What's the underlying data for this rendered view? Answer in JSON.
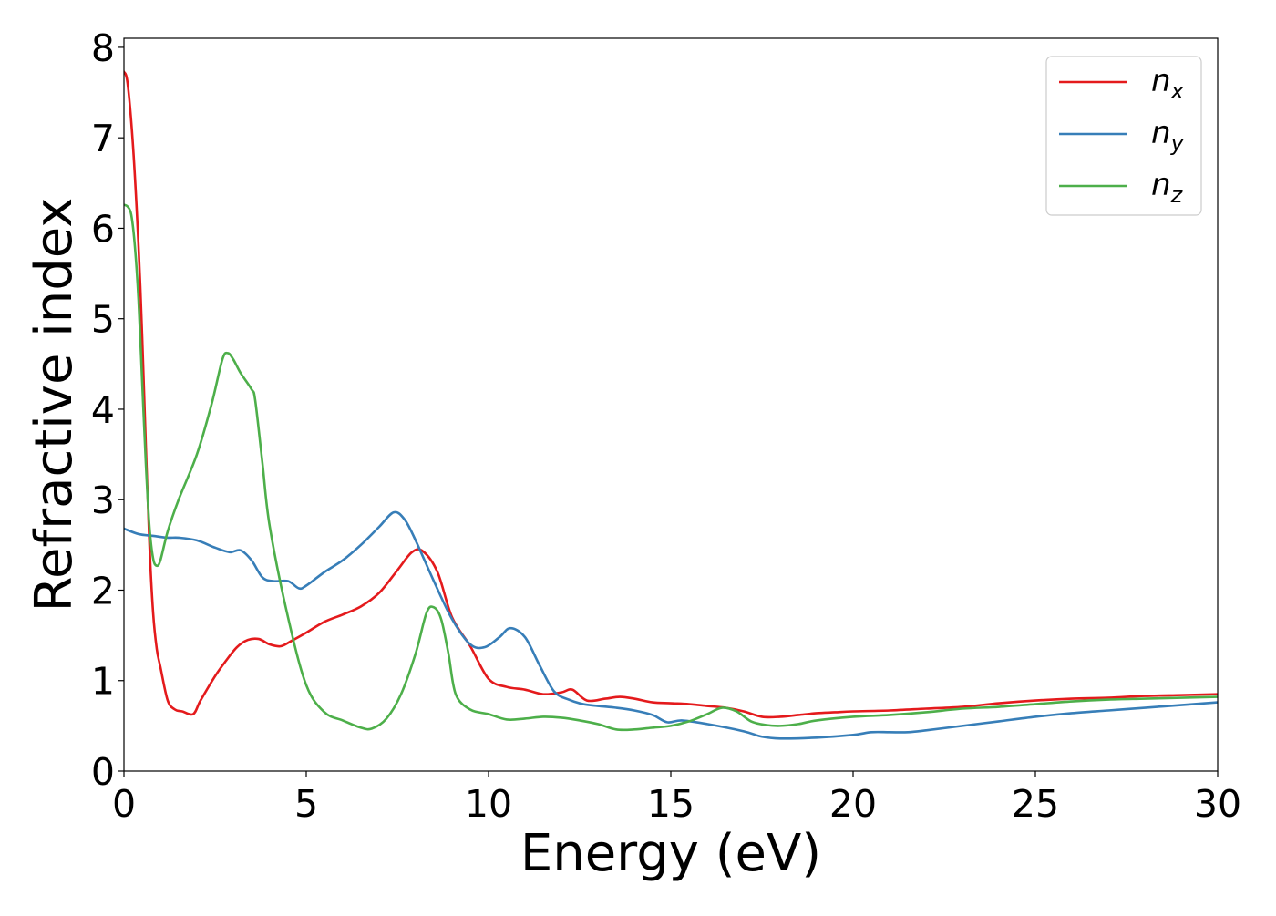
{
  "chart_data": {
    "type": "line",
    "title": "",
    "xlabel": "Energy (eV)",
    "ylabel": "Refractive index",
    "xlim": [
      0,
      30
    ],
    "ylim": [
      0,
      8.1
    ],
    "xticks": [
      "0",
      "5",
      "10",
      "15",
      "20",
      "25",
      "30"
    ],
    "yticks": [
      "0",
      "1",
      "2",
      "3",
      "4",
      "5",
      "6",
      "7",
      "8"
    ],
    "grid": false,
    "legend_position": "top-right",
    "series": [
      {
        "name": "n",
        "subscript": "x",
        "color": "#e41a1c",
        "x": [
          0,
          0.1,
          0.25,
          0.4,
          0.5,
          0.6,
          0.7,
          0.8,
          0.9,
          1.0,
          1.2,
          1.4,
          1.6,
          1.9,
          2.1,
          2.5,
          2.8,
          3.1,
          3.4,
          3.7,
          4.0,
          4.3,
          4.6,
          5.0,
          5.5,
          6.0,
          6.5,
          7.0,
          7.5,
          7.9,
          8.2,
          8.6,
          9.0,
          9.5,
          10.0,
          10.5,
          11.0,
          11.5,
          12.0,
          12.3,
          12.7,
          13.2,
          13.6,
          14.0,
          14.5,
          15.0,
          15.5,
          16.0,
          16.5,
          17.0,
          17.5,
          18.0,
          18.5,
          19.0,
          19.5,
          20.0,
          21.0,
          22.0,
          23.0,
          24.0,
          25.0,
          26.0,
          27.0,
          28.0,
          29.0,
          30.0
        ],
        "y": [
          7.73,
          7.6,
          6.9,
          5.8,
          4.8,
          3.6,
          2.5,
          1.75,
          1.35,
          1.15,
          0.78,
          0.68,
          0.66,
          0.63,
          0.78,
          1.05,
          1.22,
          1.37,
          1.45,
          1.46,
          1.4,
          1.38,
          1.44,
          1.53,
          1.65,
          1.73,
          1.82,
          1.97,
          2.22,
          2.42,
          2.43,
          2.2,
          1.7,
          1.38,
          1.02,
          0.93,
          0.9,
          0.85,
          0.87,
          0.9,
          0.78,
          0.8,
          0.82,
          0.8,
          0.76,
          0.75,
          0.74,
          0.72,
          0.7,
          0.66,
          0.6,
          0.6,
          0.62,
          0.64,
          0.65,
          0.66,
          0.67,
          0.69,
          0.71,
          0.75,
          0.78,
          0.8,
          0.81,
          0.83,
          0.84,
          0.85
        ]
      },
      {
        "name": "n",
        "subscript": "y",
        "color": "#377eb8",
        "x": [
          0,
          0.4,
          0.8,
          1.2,
          1.5,
          2.0,
          2.5,
          2.9,
          3.2,
          3.5,
          3.8,
          4.1,
          4.5,
          4.8,
          5.0,
          5.5,
          6.0,
          6.5,
          7.0,
          7.4,
          7.7,
          8.0,
          8.5,
          9.0,
          9.5,
          9.9,
          10.3,
          10.6,
          11.0,
          11.4,
          11.8,
          12.2,
          12.6,
          13.0,
          13.5,
          14.0,
          14.5,
          14.9,
          15.3,
          16.0,
          17.0,
          17.5,
          18.0,
          19.0,
          20.0,
          20.5,
          21.0,
          21.5,
          22.0,
          23.0,
          24.0,
          25.0,
          26.0,
          27.0,
          28.0,
          29.0,
          30.0
        ],
        "y": [
          2.68,
          2.62,
          2.6,
          2.58,
          2.58,
          2.55,
          2.47,
          2.42,
          2.44,
          2.33,
          2.14,
          2.1,
          2.1,
          2.02,
          2.05,
          2.2,
          2.33,
          2.5,
          2.7,
          2.86,
          2.78,
          2.55,
          2.1,
          1.68,
          1.4,
          1.37,
          1.48,
          1.58,
          1.48,
          1.17,
          0.88,
          0.79,
          0.74,
          0.72,
          0.7,
          0.67,
          0.62,
          0.54,
          0.56,
          0.52,
          0.44,
          0.38,
          0.36,
          0.37,
          0.4,
          0.43,
          0.43,
          0.43,
          0.45,
          0.5,
          0.55,
          0.6,
          0.64,
          0.67,
          0.7,
          0.73,
          0.76
        ]
      },
      {
        "name": "n",
        "subscript": "z",
        "color": "#4daf4a",
        "x": [
          0,
          0.1,
          0.2,
          0.3,
          0.4,
          0.5,
          0.6,
          0.7,
          0.8,
          0.9,
          1.0,
          1.2,
          1.5,
          2.0,
          2.4,
          2.7,
          2.85,
          3.0,
          3.2,
          3.5,
          3.6,
          3.8,
          4.0,
          4.5,
          5.0,
          5.5,
          6.0,
          6.5,
          6.8,
          7.2,
          7.6,
          8.0,
          8.3,
          8.5,
          8.7,
          8.9,
          9.1,
          9.5,
          10.0,
          10.5,
          11.0,
          11.5,
          12.0,
          12.5,
          13.0,
          13.5,
          14.0,
          14.5,
          15.0,
          15.5,
          16.0,
          16.4,
          16.8,
          17.2,
          17.6,
          18.0,
          18.5,
          19.0,
          20.0,
          21.0,
          22.0,
          23.0,
          24.0,
          25.0,
          26.0,
          27.0,
          28.0,
          29.0,
          30.0
        ],
        "y": [
          6.26,
          6.24,
          6.15,
          5.8,
          5.2,
          4.3,
          3.4,
          2.7,
          2.35,
          2.27,
          2.33,
          2.65,
          3.0,
          3.5,
          4.05,
          4.55,
          4.62,
          4.55,
          4.4,
          4.22,
          4.1,
          3.4,
          2.7,
          1.7,
          0.95,
          0.65,
          0.56,
          0.48,
          0.47,
          0.58,
          0.85,
          1.3,
          1.75,
          1.81,
          1.68,
          1.3,
          0.85,
          0.68,
          0.63,
          0.57,
          0.58,
          0.6,
          0.59,
          0.56,
          0.52,
          0.46,
          0.46,
          0.48,
          0.5,
          0.55,
          0.63,
          0.7,
          0.66,
          0.55,
          0.51,
          0.5,
          0.52,
          0.56,
          0.6,
          0.62,
          0.65,
          0.69,
          0.71,
          0.74,
          0.77,
          0.79,
          0.8,
          0.81,
          0.82
        ]
      }
    ]
  }
}
